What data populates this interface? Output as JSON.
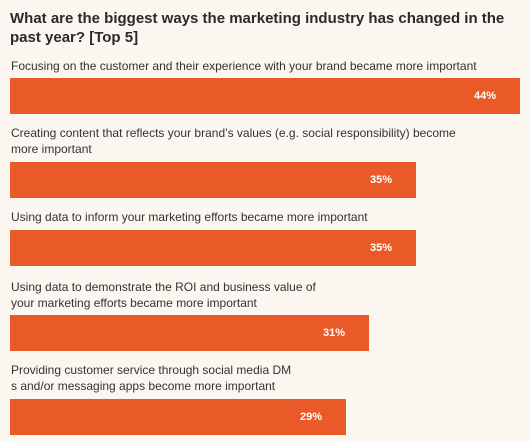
{
  "colors": {
    "bar": "#ea5a28",
    "background": "#fbf6ef"
  },
  "chart_data": {
    "type": "bar",
    "orientation": "horizontal",
    "title": "What are the biggest ways the marketing industry has changed in the past year? [Top 5]",
    "categories": [
      "Focusing on the customer and their experience with your brand became more important",
      "Creating content that reflects your brand’s values (e.g. social responsibility) become more important",
      "Using data to inform your marketing efforts became more important",
      "Using data to demonstrate the ROI and business value of your marketing efforts became more important",
      "Providing customer service through social media DMs and/or messaging apps become more important"
    ],
    "values": [
      44,
      35,
      35,
      31,
      29
    ],
    "value_labels": [
      "44%",
      "35%",
      "35%",
      "31%",
      "29%"
    ],
    "xlim": [
      0,
      44
    ],
    "grid": false,
    "legend": "none"
  }
}
